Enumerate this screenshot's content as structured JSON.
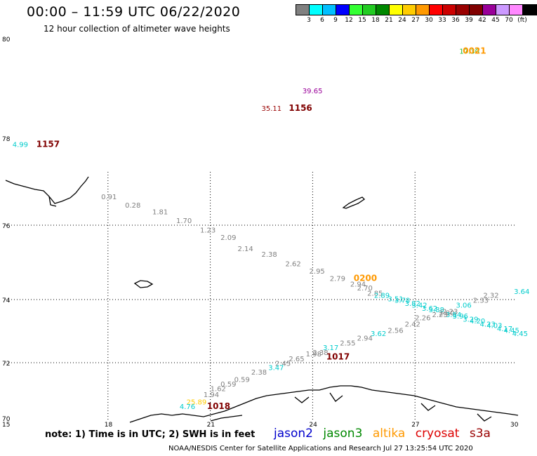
{
  "header": {
    "title": "00:00 – 11:59 UTC 06/22/2020",
    "subtitle": "12 hour collection of altimeter wave heights"
  },
  "legend": {
    "colors": [
      "#808080",
      "#00ffff",
      "#00bfff",
      "#0000ff",
      "#33ff33",
      "#22cc22",
      "#008800",
      "#ffff00",
      "#ffcc00",
      "#ff9900",
      "#ff0000",
      "#cc0000",
      "#990000",
      "#800000",
      "#990099",
      "#cc99ff",
      "#ff88ff",
      "#000000"
    ],
    "labels": [
      "3",
      "6",
      "9",
      "12",
      "15",
      "18",
      "21",
      "24",
      "27",
      "30",
      "33",
      "36",
      "39",
      "42",
      "45",
      "70",
      "(ft)"
    ]
  },
  "axes": {
    "x_ticks": [
      "15",
      "18",
      "21",
      "24",
      "27",
      "30"
    ],
    "y_ticks": [
      "80",
      "78",
      "76",
      "74",
      "72",
      "70"
    ]
  },
  "observations": [
    {
      "lon": 28.3,
      "lat": 79.7,
      "value": "17.30",
      "color": "#22bb22"
    },
    {
      "lon": 23.7,
      "lat": 78.9,
      "value": "39.65",
      "color": "#990099"
    },
    {
      "lon": 22.5,
      "lat": 78.55,
      "value": "35.11",
      "color": "#990000"
    },
    {
      "lon": 15.2,
      "lat": 77.8,
      "value": "4.99",
      "color": "#00cccc"
    },
    {
      "lon": 17.8,
      "lat": 76.6,
      "value": "0.91",
      "color": "#808080"
    },
    {
      "lon": 18.5,
      "lat": 76.4,
      "value": "0.28",
      "color": "#808080"
    },
    {
      "lon": 19.3,
      "lat": 76.25,
      "value": "1.81",
      "color": "#808080"
    },
    {
      "lon": 20.0,
      "lat": 76.05,
      "value": "1.70",
      "color": "#808080"
    },
    {
      "lon": 20.7,
      "lat": 75.8,
      "value": "1.23",
      "color": "#808080"
    },
    {
      "lon": 21.3,
      "lat": 75.6,
      "value": "2.09",
      "color": "#808080"
    },
    {
      "lon": 21.8,
      "lat": 75.3,
      "value": "2.14",
      "color": "#808080"
    },
    {
      "lon": 22.5,
      "lat": 75.15,
      "value": "2.38",
      "color": "#808080"
    },
    {
      "lon": 23.2,
      "lat": 74.9,
      "value": "2.62",
      "color": "#808080"
    },
    {
      "lon": 23.9,
      "lat": 74.7,
      "value": "2.95",
      "color": "#808080"
    },
    {
      "lon": 24.5,
      "lat": 74.5,
      "value": "2.79",
      "color": "#808080"
    },
    {
      "lon": 25.1,
      "lat": 74.35,
      "value": "2.94",
      "color": "#808080"
    },
    {
      "lon": 25.3,
      "lat": 74.25,
      "value": "2.70",
      "color": "#808080"
    },
    {
      "lon": 25.6,
      "lat": 74.1,
      "value": "2.85",
      "color": "#808080"
    },
    {
      "lon": 25.8,
      "lat": 74.05,
      "value": "2.89",
      "color": "#00cccc"
    },
    {
      "lon": 26.2,
      "lat": 73.95,
      "value": "3.51",
      "color": "#00cccc"
    },
    {
      "lon": 26.4,
      "lat": 73.9,
      "value": "3.78",
      "color": "#00cccc"
    },
    {
      "lon": 26.7,
      "lat": 73.8,
      "value": "3.82",
      "color": "#00cccc"
    },
    {
      "lon": 26.9,
      "lat": 73.75,
      "value": "3.42",
      "color": "#00cccc"
    },
    {
      "lon": 27.2,
      "lat": 73.65,
      "value": "3.62",
      "color": "#00cccc"
    },
    {
      "lon": 27.4,
      "lat": 73.6,
      "value": "3.88",
      "color": "#00cccc"
    },
    {
      "lon": 27.7,
      "lat": 73.5,
      "value": "2.80",
      "color": "#808080"
    },
    {
      "lon": 27.9,
      "lat": 73.45,
      "value": "3.84",
      "color": "#00cccc"
    },
    {
      "lon": 28.1,
      "lat": 73.4,
      "value": "3.96",
      "color": "#00cccc"
    },
    {
      "lon": 28.4,
      "lat": 73.3,
      "value": "3.29",
      "color": "#00cccc"
    },
    {
      "lon": 28.6,
      "lat": 73.25,
      "value": "4.20",
      "color": "#00cccc"
    },
    {
      "lon": 28.9,
      "lat": 73.15,
      "value": "4.23",
      "color": "#00cccc"
    },
    {
      "lon": 29.1,
      "lat": 73.1,
      "value": "4.03",
      "color": "#00cccc"
    },
    {
      "lon": 29.4,
      "lat": 73.0,
      "value": "4.17",
      "color": "#00cccc"
    },
    {
      "lon": 29.6,
      "lat": 72.95,
      "value": "4.45",
      "color": "#00cccc"
    },
    {
      "lon": 29.85,
      "lat": 72.85,
      "value": "4.45",
      "color": "#00cccc"
    },
    {
      "lon": 29.9,
      "lat": 74.15,
      "value": "3.64",
      "color": "#00cccc"
    },
    {
      "lon": 29.0,
      "lat": 74.05,
      "value": "2.32",
      "color": "#808080"
    },
    {
      "lon": 28.7,
      "lat": 73.9,
      "value": "2.33",
      "color": "#808080"
    },
    {
      "lon": 28.2,
      "lat": 73.75,
      "value": "3.06",
      "color": "#00cccc"
    },
    {
      "lon": 27.8,
      "lat": 73.55,
      "value": "2.23",
      "color": "#808080"
    },
    {
      "lon": 27.5,
      "lat": 73.45,
      "value": "2.23",
      "color": "#808080"
    },
    {
      "lon": 27.0,
      "lat": 73.35,
      "value": "2.26",
      "color": "#808080"
    },
    {
      "lon": 26.7,
      "lat": 73.15,
      "value": "2.42",
      "color": "#808080"
    },
    {
      "lon": 26.2,
      "lat": 72.95,
      "value": "2.56",
      "color": "#808080"
    },
    {
      "lon": 25.7,
      "lat": 72.85,
      "value": "3.62",
      "color": "#00cccc"
    },
    {
      "lon": 25.3,
      "lat": 72.7,
      "value": "2.94",
      "color": "#808080"
    },
    {
      "lon": 24.8,
      "lat": 72.55,
      "value": "2.55",
      "color": "#808080"
    },
    {
      "lon": 24.3,
      "lat": 72.4,
      "value": "3.17",
      "color": "#00cccc"
    },
    {
      "lon": 24.0,
      "lat": 72.25,
      "value": "2.38",
      "color": "#808080"
    },
    {
      "lon": 23.8,
      "lat": 72.2,
      "value": "1.98",
      "color": "#808080"
    },
    {
      "lon": 23.3,
      "lat": 72.05,
      "value": "2.65",
      "color": "#808080"
    },
    {
      "lon": 22.9,
      "lat": 71.9,
      "value": "2.45",
      "color": "#808080"
    },
    {
      "lon": 22.7,
      "lat": 71.75,
      "value": "3.47",
      "color": "#00cccc"
    },
    {
      "lon": 22.2,
      "lat": 71.6,
      "value": "2.38",
      "color": "#808080"
    },
    {
      "lon": 21.7,
      "lat": 71.35,
      "value": "0.59",
      "color": "#808080"
    },
    {
      "lon": 21.3,
      "lat": 71.2,
      "value": "0.59",
      "color": "#808080"
    },
    {
      "lon": 21.0,
      "lat": 71.05,
      "value": "1.62",
      "color": "#808080"
    },
    {
      "lon": 20.8,
      "lat": 70.85,
      "value": "1.94",
      "color": "#808080"
    },
    {
      "lon": 20.3,
      "lat": 70.6,
      "value": "25.89",
      "color": "#ffcc00"
    },
    {
      "lon": 20.1,
      "lat": 70.45,
      "value": "4.76",
      "color": "#00cccc"
    }
  ],
  "time_labels": [
    {
      "lon": 28.4,
      "lat": 79.7,
      "value": "0021",
      "color": "#ff9900"
    },
    {
      "lon": 23.3,
      "lat": 78.55,
      "value": "1156",
      "color": "#800000"
    },
    {
      "lon": 15.9,
      "lat": 77.8,
      "value": "1157",
      "color": "#800000"
    },
    {
      "lon": 25.2,
      "lat": 74.5,
      "value": "0200",
      "color": "#ff9900"
    },
    {
      "lon": 24.4,
      "lat": 72.1,
      "value": "1017",
      "color": "#800000"
    },
    {
      "lon": 20.9,
      "lat": 70.45,
      "value": "1018",
      "color": "#800000"
    }
  ],
  "footer": {
    "note": "note:  1) Time is in UTC;  2) SWH is in feet",
    "satellites": [
      {
        "name": "jason2",
        "color": "#0000cc"
      },
      {
        "name": "jason3",
        "color": "#008800"
      },
      {
        "name": "altika",
        "color": "#ff9900"
      },
      {
        "name": "cryosat",
        "color": "#dd0000"
      },
      {
        "name": "s3a",
        "color": "#990000"
      }
    ],
    "credit": "NOAA/NESDIS Center for Satellite Applications and Research   Jul 27 13:25:54 UTC 2020"
  }
}
